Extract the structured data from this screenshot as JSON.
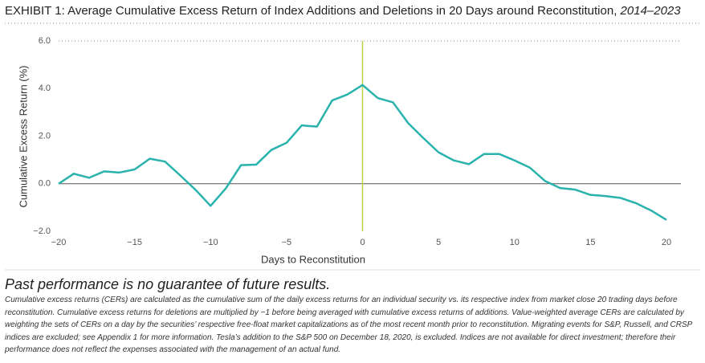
{
  "chart_data": {
    "type": "line",
    "title": "EXHIBIT 1: Average Cumulative Excess Return of Index Additions and Deletions in 20 Days around Reconstitution,",
    "title_period": "2014–2023",
    "x_label": "Days to Reconstitution",
    "y_label": "Cumulative Excess Return (%)",
    "x": [
      -20,
      -19,
      -18,
      -17,
      -16,
      -15,
      -14,
      -13,
      -12,
      -11,
      -10,
      -9,
      -8,
      -7,
      -6,
      -5,
      -4,
      -3,
      -2,
      -1,
      0,
      1,
      2,
      3,
      4,
      5,
      6,
      7,
      8,
      9,
      10,
      11,
      12,
      13,
      14,
      15,
      16,
      17,
      18,
      19,
      20
    ],
    "series": [
      {
        "color": "#2ab3ad",
        "values": [
          0.0,
          0.42,
          0.25,
          0.52,
          0.47,
          0.6,
          1.05,
          0.93,
          0.35,
          -0.25,
          -0.93,
          -0.2,
          0.78,
          0.8,
          1.42,
          1.72,
          2.45,
          2.4,
          3.5,
          3.75,
          4.15,
          3.6,
          3.42,
          2.55,
          1.92,
          1.32,
          0.98,
          0.82,
          1.25,
          1.25,
          0.98,
          0.68,
          0.12,
          -0.18,
          -0.25,
          -0.47,
          -0.52,
          -0.6,
          -0.82,
          -1.13,
          -1.52
        ]
      }
    ],
    "xlim": [
      -20,
      20
    ],
    "ylim": [
      -2,
      6
    ],
    "xticks": [
      {
        "value": -20,
        "label": "−20"
      },
      {
        "value": -15,
        "label": "−15"
      },
      {
        "value": -10,
        "label": "−10"
      },
      {
        "value": -5,
        "label": "−5"
      },
      0,
      5,
      10,
      15,
      20
    ],
    "yticks": [
      {
        "value": 6,
        "label": "6.0"
      },
      {
        "value": 4,
        "label": "4.0"
      },
      {
        "value": 2,
        "label": "2.0"
      },
      {
        "value": 0,
        "label": "0.0"
      },
      {
        "value": -2,
        "label": "−2.0"
      }
    ],
    "highlight_x": 0,
    "highlight_color": "#b9d44a"
  },
  "footer": {
    "disclaimer": "Past performance is no guarantee of future results.",
    "notes": "Cumulative excess returns (CERs) are calculated as the cumulative sum of the daily excess returns for an individual security vs. its respective index from market close 20 trading days before reconstitution. Cumulative excess returns for deletions are multiplied by −1 before being averaged with cumulative excess returns of additions. Value-weighted average CERs are calculated by weighting the sets of CERs on a day by the securities’ respective free-float market capitalizations as of the most recent month prior to reconstitution. Migrating events for S&P, Russell, and CRSP indices are excluded; see Appendix 1 for more information. Tesla’s addition to the S&P 500 on December 18, 2020, is excluded. Indices are not available for direct investment; therefore their performance does not reflect the expenses associated with the management of an actual fund."
  }
}
